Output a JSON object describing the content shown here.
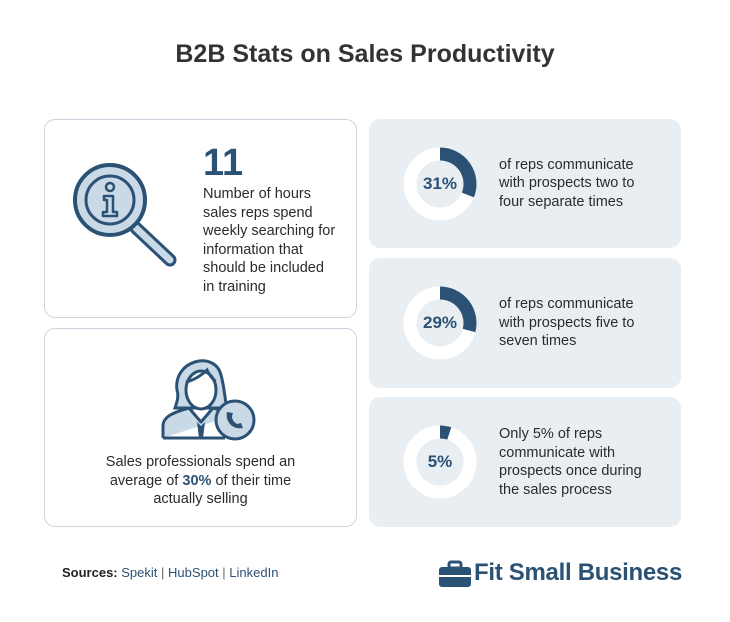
{
  "header": {
    "title": "B2B Stats on Sales Productivity"
  },
  "cards": {
    "hours": {
      "number": "11",
      "lines": [
        "Number of hours",
        "sales reps spend",
        "weekly searching for",
        "information that",
        "should be included",
        "in training"
      ]
    },
    "selling": {
      "before": "Sales professionals spend an",
      "mid": "average of",
      "highlight": "30%",
      "after": "of their time",
      "end": "actually selling"
    }
  },
  "stats": [
    {
      "value": 31,
      "label": "31%",
      "lines": [
        "of reps communicate",
        "with prospects two to",
        "four separate times"
      ]
    },
    {
      "value": 29,
      "label": "29%",
      "lines": [
        "of reps communicate",
        "with prospects five to",
        "seven times"
      ]
    },
    {
      "value": 5,
      "label": "5%",
      "lines": [
        "Only 5% of reps",
        "communicate with",
        "prospects once during",
        "the sales process"
      ]
    }
  ],
  "footer": {
    "sources_label": "Sources:",
    "sources": [
      "Spekit",
      "HubSpot",
      "LinkedIn"
    ],
    "separator": "|",
    "logo": "Fit Small Business"
  }
}
